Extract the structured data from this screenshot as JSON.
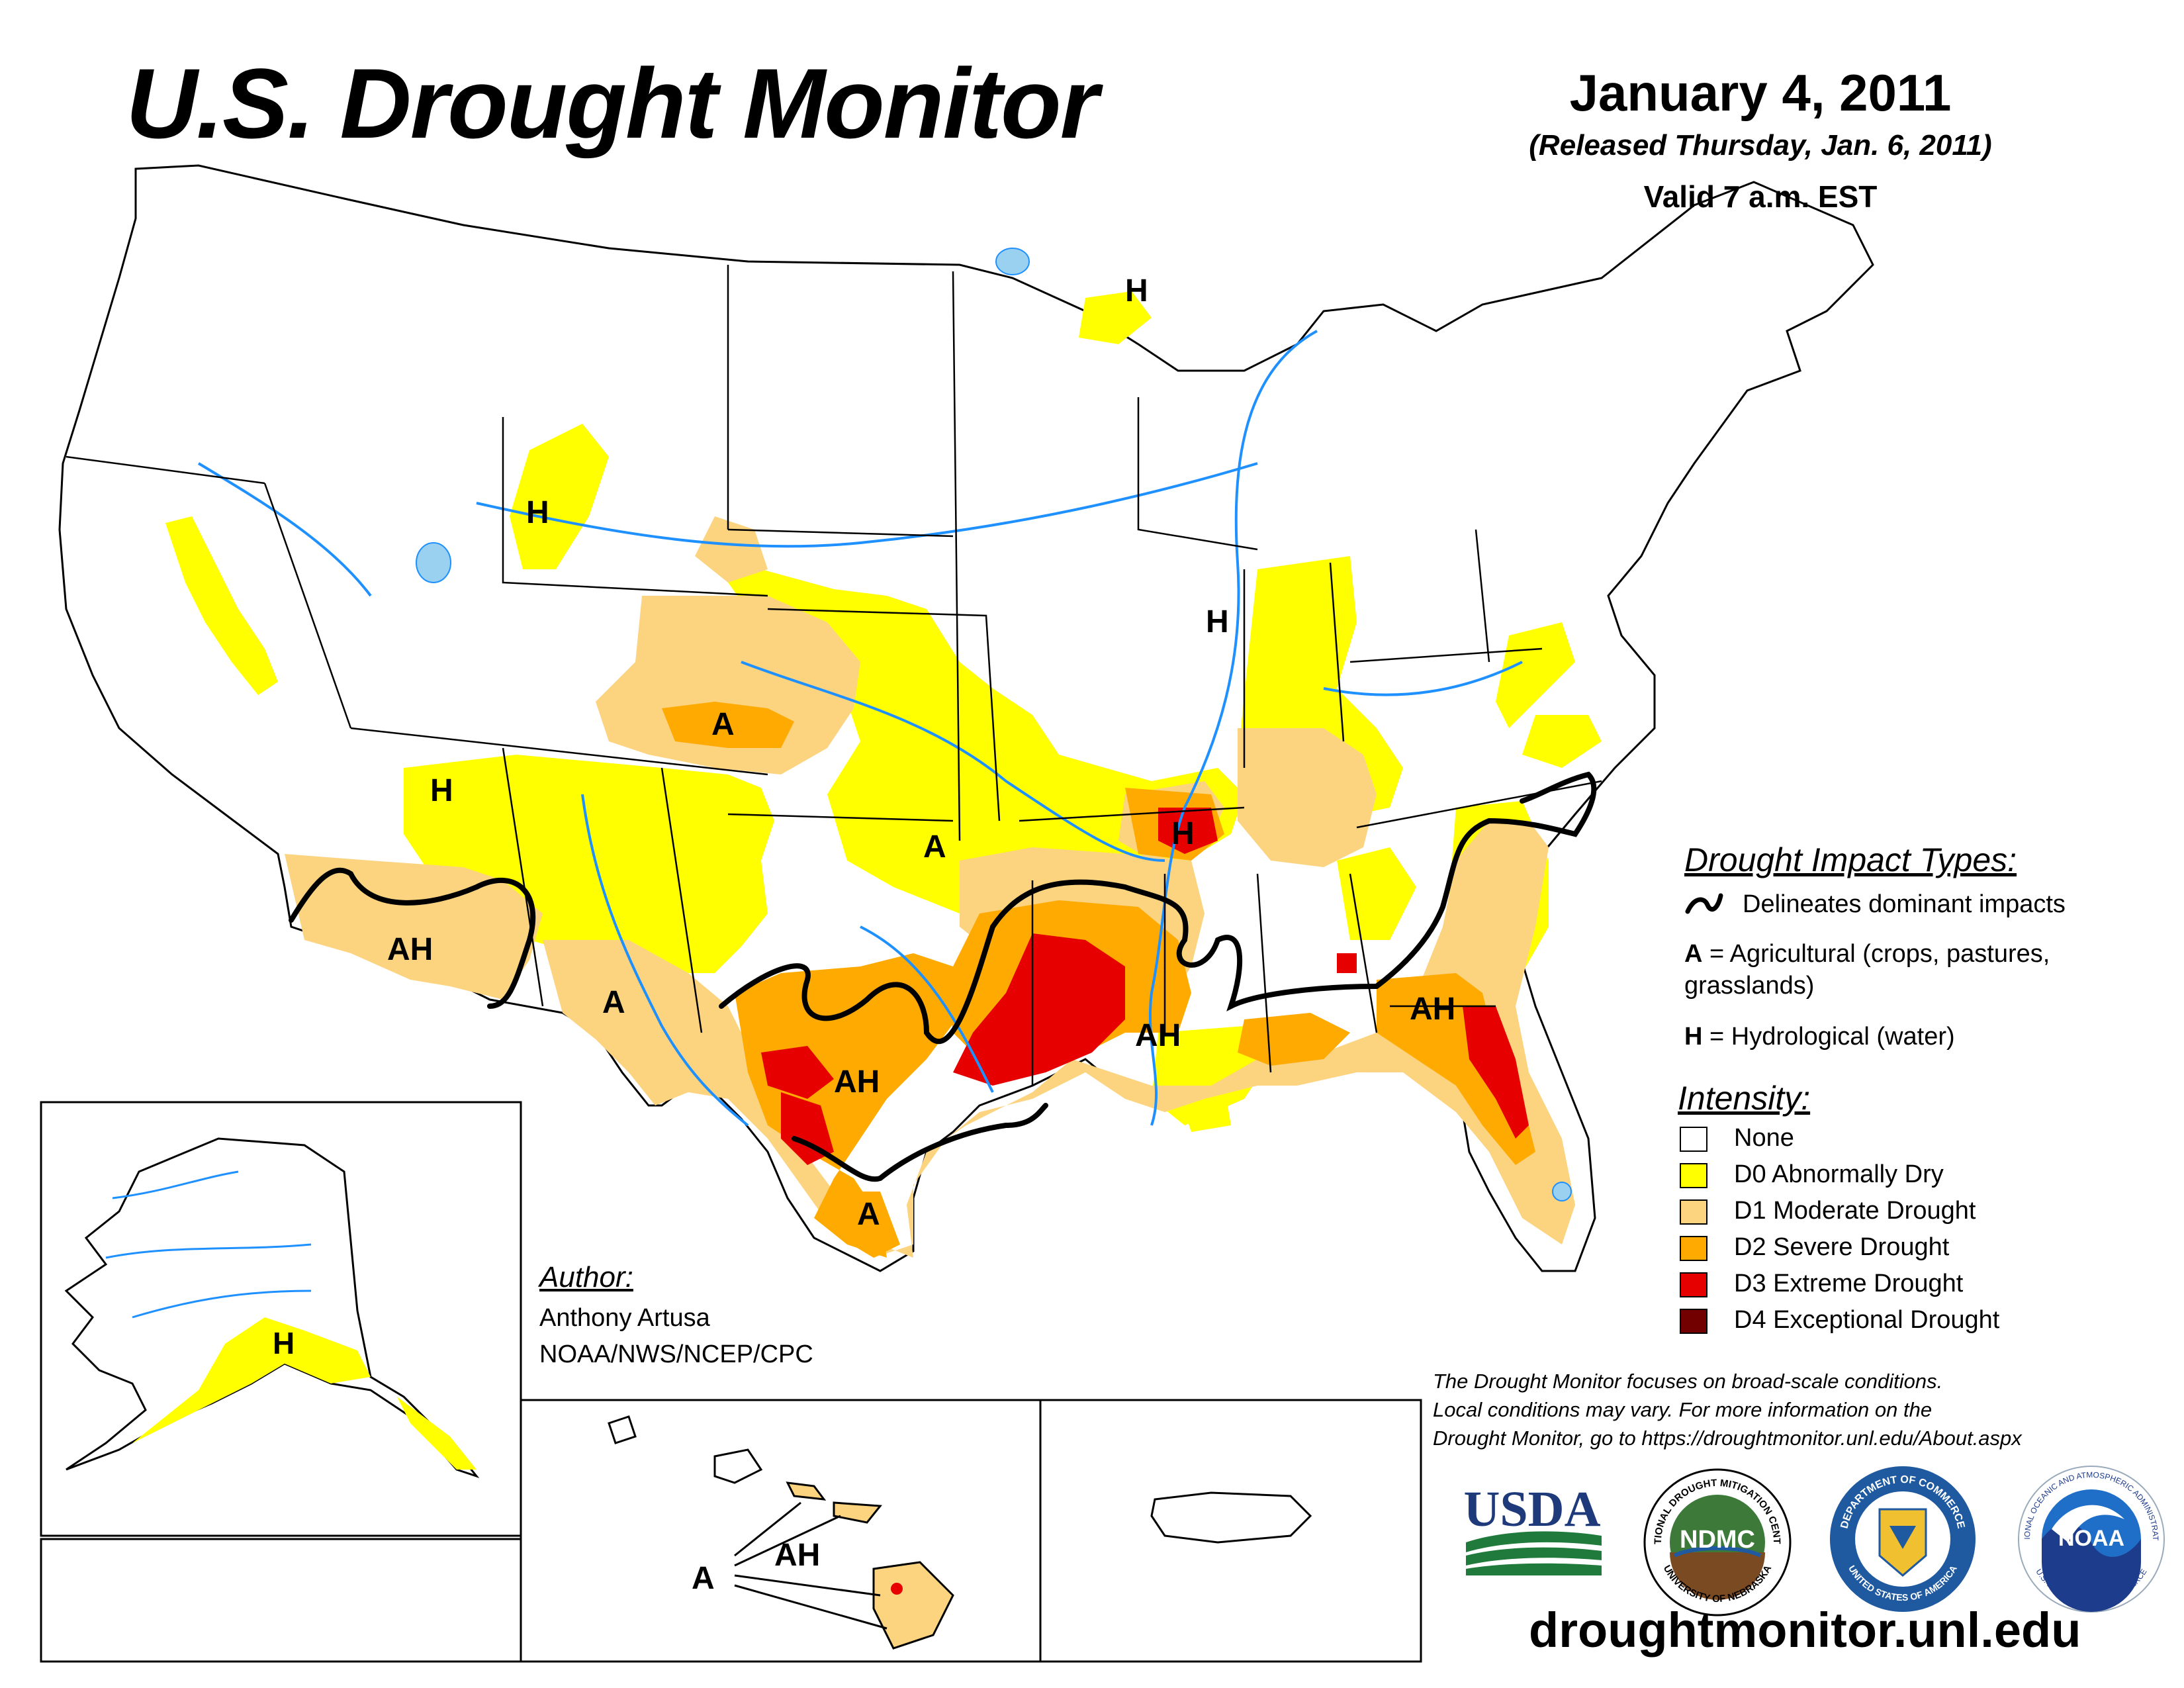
{
  "header": {
    "title": "U.S. Drought Monitor",
    "date": "January 4, 2011",
    "released": "(Released Thursday, Jan. 6, 2011)",
    "valid": "Valid 7 a.m. EST"
  },
  "impact_legend": {
    "heading": "Drought Impact Types:",
    "delineate": "Delineates dominant impacts",
    "a_code": "A",
    "a_desc": "= Agricultural (crops, pastures,",
    "a_desc2": "grasslands)",
    "h_code": "H",
    "h_desc": "= Hydrological (water)"
  },
  "intensity_legend": {
    "heading": "Intensity:",
    "items": [
      {
        "label": "None",
        "color": "#ffffff"
      },
      {
        "label": "D0 Abnormally Dry",
        "color": "#ffff00"
      },
      {
        "label": "D1 Moderate Drought",
        "color": "#fcd37f"
      },
      {
        "label": "D2 Severe Drought",
        "color": "#ffaa00"
      },
      {
        "label": "D3 Extreme Drought",
        "color": "#e60000"
      },
      {
        "label": "D4 Exceptional Drought",
        "color": "#730000"
      }
    ]
  },
  "author": {
    "heading": "Author:",
    "name": "Anthony Artusa",
    "org": "NOAA/NWS/NCEP/CPC"
  },
  "note": {
    "line1": "The Drought Monitor focuses on broad-scale conditions.",
    "line2": "Local conditions may vary. For more information on the",
    "line3": "Drought Monitor, go to https://droughtmonitor.unl.edu/About.aspx"
  },
  "logos": {
    "usda": "USDA",
    "ndmc": "NDMC",
    "ndmc_ring_top": "NATIONAL DROUGHT MITIGATION CENTER",
    "ndmc_ring_bottom": "UNIVERSITY OF NEBRASKA",
    "commerce_ring": "DEPARTMENT OF COMMERCE",
    "commerce_ring_bottom": "UNITED STATES OF AMERICA",
    "noaa": "NOAA",
    "noaa_ring": "NATIONAL OCEANIC AND ATMOSPHERIC ADMINISTRATION",
    "noaa_ring_bottom": "U.S. DEPARTMENT OF COMMERCE"
  },
  "url": "droughtmonitor.unl.edu",
  "map_labels": {
    "h": "H",
    "a": "A",
    "ah": "AH"
  },
  "colors": {
    "none": "#ffffff",
    "d0": "#ffff00",
    "d1": "#fcd37f",
    "d2": "#ffaa00",
    "d3": "#e60000",
    "d4": "#730000",
    "water": "#1e90ff",
    "lake": "#9ad0f0"
  }
}
